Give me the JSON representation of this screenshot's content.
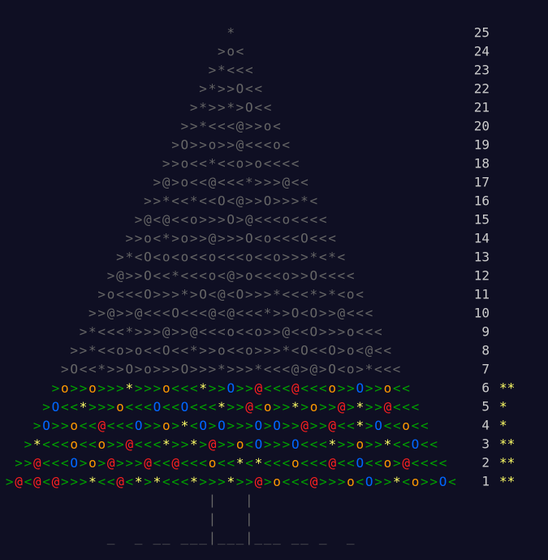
{
  "calendar": {
    "rows": [
      {
        "day": 25,
        "art": "*"
      },
      {
        "day": 24,
        "art": ">o<"
      },
      {
        "day": 23,
        "art": ">*<<<"
      },
      {
        "day": 22,
        "art": ">*>>O<<"
      },
      {
        "day": 21,
        "art": ">*>>*>O<<"
      },
      {
        "day": 20,
        "art": ">>*<<<@>>o<"
      },
      {
        "day": 19,
        "art": ">O>>o>>@<<<o<"
      },
      {
        "day": 18,
        "art": ">>o<<*<<o>o<<<<"
      },
      {
        "day": 17,
        "art": ">@>o<<@<<<*>>>@<<"
      },
      {
        "day": 16,
        "art": ">>*<<*<<O<@>>O>>>*<"
      },
      {
        "day": 15,
        "art": ">@<@<<o>>>O>@<<<o<<<<"
      },
      {
        "day": 14,
        "art": ">>o<*>o>>@>>>O<o<<<O<<<"
      },
      {
        "day": 13,
        "art": ">*<O<o<o<<o<<<o<<o>>>*<*<"
      },
      {
        "day": 12,
        "art": ">@>>O<<*<<<o<@>o<<<o>>O<<<<"
      },
      {
        "day": 11,
        "art": ">o<<<O>>>*>O<@<O>>>*<<<*>*<o<"
      },
      {
        "day": 10,
        "art": ">>@>>@<<<O<<<@<@<<<*>>O<O>>@<<<"
      },
      {
        "day": 9,
        "art": ">*<<<*>>>@>>@<<<o<<o>>@<<O>>>o<<<"
      },
      {
        "day": 8,
        "art": ">>*<<o>o<<O<<*>>o<<o>>>*<O<<O>o<@<<"
      },
      {
        "day": 7,
        "art": ">O<<*>>O>o>>>O>>>*>>>*<<<@>@>O<o>*<<<"
      },
      {
        "day": 6,
        "art": ">o>>o>>>*>>>o<<<*>>O>>@<<<@<<<o>>O>>o<<",
        "stars": "**"
      },
      {
        "day": 5,
        "art": ">O<<*>>>o<<<O<<O<<<*>>@<o>>*>o>>@>*>>@<<<",
        "stars": "*"
      },
      {
        "day": 4,
        "art": ">O>>o<<@<<<O>>o>*<O>O>>>O>O>>@>>@<<*>O<<o<<",
        "stars": "*"
      },
      {
        "day": 3,
        "art": ">*<<<o<<o>>@<<<*>>*>@>>o<O>>>O<<<*>>o>>*<<O<<",
        "stars": "**"
      },
      {
        "day": 2,
        "art": ">>@<<<O>o>@>>>@<<@<<<o<<*<*<<<o<<<@<<O<<o>@<<<<",
        "stars": "**"
      },
      {
        "day": 1,
        "art": ">@<@<@>>>*<<@<*>*<<<*>>>*>>@>o<<<@>>>o<O>>*<o>>O<",
        "stars": "**"
      }
    ],
    "trunk": [
      "|   |",
      "|   |"
    ],
    "ground": "_  _ __ ___|___|___ __ _  _"
  }
}
